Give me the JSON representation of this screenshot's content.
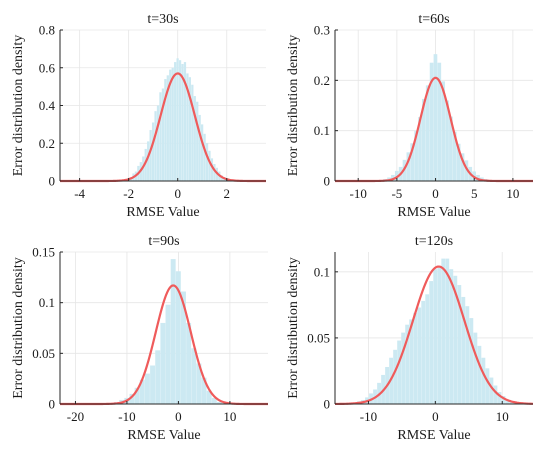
{
  "figure": {
    "colors": {
      "histogram": "#cce9f2",
      "fit_curve": "#ef5b5b",
      "axis": "#262626"
    }
  },
  "chart_data": [
    {
      "type": "bar",
      "title": "t=30s",
      "xlabel": "RMSE Value",
      "ylabel": "Error distribution density",
      "xlim": [
        -4.8,
        3.6
      ],
      "ylim": [
        0,
        0.8
      ],
      "xticks": [
        -4,
        -2,
        0,
        2
      ],
      "xtick_labels": [
        "-4",
        "-2",
        "0",
        "2"
      ],
      "yticks": [
        0,
        0.2,
        0.4,
        0.6,
        0.8
      ],
      "ytick_labels": [
        "0",
        "0.2",
        "0.4",
        "0.6",
        "0.8"
      ],
      "grid": true,
      "series": [
        {
          "kind": "histogram",
          "bin_width": 0.1,
          "bin_centers": [
            -2.2,
            -2.1,
            -2.0,
            -1.9,
            -1.8,
            -1.7,
            -1.6,
            -1.5,
            -1.4,
            -1.3,
            -1.2,
            -1.1,
            -1.0,
            -0.9,
            -0.8,
            -0.7,
            -0.6,
            -0.5,
            -0.4,
            -0.3,
            -0.2,
            -0.1,
            0.0,
            0.1,
            0.2,
            0.3,
            0.4,
            0.5,
            0.6,
            0.7,
            0.8,
            0.9,
            1.0,
            1.1,
            1.2,
            1.3,
            1.4,
            1.5,
            1.6,
            1.7,
            1.8,
            1.9,
            2.0,
            2.1,
            2.2
          ],
          "values": [
            0.0,
            0.01,
            0.01,
            0.02,
            0.04,
            0.05,
            0.08,
            0.1,
            0.13,
            0.17,
            0.21,
            0.27,
            0.31,
            0.37,
            0.4,
            0.47,
            0.49,
            0.54,
            0.56,
            0.59,
            0.6,
            0.63,
            0.65,
            0.64,
            0.62,
            0.63,
            0.57,
            0.55,
            0.51,
            0.45,
            0.42,
            0.35,
            0.3,
            0.25,
            0.2,
            0.16,
            0.12,
            0.09,
            0.07,
            0.05,
            0.03,
            0.02,
            0.01,
            0.01,
            0.0
          ]
        },
        {
          "kind": "normal-fit",
          "mean": 0.0,
          "std": 0.7,
          "peak": 0.57
        }
      ]
    },
    {
      "type": "bar",
      "title": "t=60s",
      "xlabel": "RMSE Value",
      "ylabel": "Error distribution density",
      "xlim": [
        -13,
        12.6
      ],
      "ylim": [
        0,
        0.3
      ],
      "xticks": [
        -10,
        -5,
        0,
        5,
        10
      ],
      "xtick_labels": [
        "-10",
        "-5",
        "0",
        "5",
        "10"
      ],
      "yticks": [
        0,
        0.1,
        0.2,
        0.3
      ],
      "ytick_labels": [
        "0",
        "0.1",
        "0.2",
        "0.3"
      ],
      "grid": true,
      "series": [
        {
          "kind": "histogram",
          "bin_width": 0.5,
          "bin_centers": [
            -7.5,
            -7.0,
            -6.5,
            -6.0,
            -5.5,
            -5.0,
            -4.5,
            -4.0,
            -3.5,
            -3.0,
            -2.5,
            -2.0,
            -1.5,
            -1.0,
            -0.5,
            0.0,
            0.5,
            1.0,
            1.5,
            2.0,
            2.5,
            3.0,
            3.5,
            4.0,
            4.5,
            5.0,
            5.5,
            6.0,
            6.5,
            7.0,
            7.5
          ],
          "values": [
            0.0,
            0.002,
            0.004,
            0.007,
            0.012,
            0.02,
            0.028,
            0.042,
            0.057,
            0.075,
            0.1,
            0.127,
            0.163,
            0.19,
            0.235,
            0.252,
            0.235,
            0.198,
            0.16,
            0.128,
            0.098,
            0.074,
            0.055,
            0.041,
            0.028,
            0.019,
            0.012,
            0.007,
            0.004,
            0.002,
            0.0
          ]
        },
        {
          "kind": "normal-fit",
          "mean": 0.0,
          "std": 1.95,
          "peak": 0.205
        }
      ]
    },
    {
      "type": "bar",
      "title": "t=90s",
      "xlabel": "RMSE Value",
      "ylabel": "Error distribution density",
      "xlim": [
        -23,
        17.4
      ],
      "ylim": [
        0,
        0.15
      ],
      "xticks": [
        -20,
        -10,
        0,
        10
      ],
      "xtick_labels": [
        "-20",
        "-10",
        "0",
        "10"
      ],
      "yticks": [
        0,
        0.05,
        0.1,
        0.15
      ],
      "ytick_labels": [
        "0",
        "0.05",
        "0.1",
        "0.15"
      ],
      "grid": true,
      "series": [
        {
          "kind": "histogram",
          "bin_width": 1,
          "bin_centers": [
            -12,
            -11,
            -10,
            -9,
            -8,
            -7,
            -6,
            -5,
            -4,
            -3,
            -2,
            -1,
            0,
            1,
            2,
            3,
            4,
            5,
            6,
            7,
            8,
            9,
            10
          ],
          "values": [
            0.002,
            0.004,
            0.006,
            0.01,
            0.016,
            0.024,
            0.03,
            0.038,
            0.053,
            0.08,
            0.098,
            0.143,
            0.131,
            0.111,
            0.08,
            0.055,
            0.04,
            0.026,
            0.013,
            0.006,
            0.002,
            0.001,
            0.0
          ]
        },
        {
          "kind": "normal-fit",
          "mean": -1.0,
          "std": 3.4,
          "peak": 0.117
        }
      ]
    },
    {
      "type": "bar",
      "title": "t=120s",
      "xlabel": "RMSE Value",
      "ylabel": "Error distribution density",
      "xlim": [
        -15,
        14.6
      ],
      "ylim": [
        0,
        0.115
      ],
      "xticks": [
        -10,
        0,
        10
      ],
      "xtick_labels": [
        "-10",
        "0",
        "10"
      ],
      "yticks": [
        0,
        0.05,
        0.1
      ],
      "ytick_labels": [
        "0",
        "0.05",
        "0.1"
      ],
      "grid": true,
      "series": [
        {
          "kind": "histogram",
          "bin_width": 0.6,
          "bin_centers": [
            -12.0,
            -11.4,
            -10.8,
            -10.2,
            -9.6,
            -9.0,
            -8.4,
            -7.8,
            -7.2,
            -6.6,
            -6.0,
            -5.4,
            -4.8,
            -4.2,
            -3.6,
            -3.0,
            -2.4,
            -1.8,
            -1.2,
            -0.6,
            0.0,
            0.6,
            1.2,
            1.8,
            2.4,
            3.0,
            3.6,
            4.2,
            4.8,
            5.4,
            6.0,
            6.6,
            7.2,
            7.8,
            8.4,
            9.0,
            9.6,
            10.2,
            10.8,
            11.4,
            12.0
          ],
          "values": [
            0.001,
            0.002,
            0.003,
            0.005,
            0.008,
            0.011,
            0.016,
            0.022,
            0.028,
            0.035,
            0.041,
            0.048,
            0.054,
            0.06,
            0.064,
            0.069,
            0.073,
            0.078,
            0.083,
            0.093,
            0.102,
            0.103,
            0.11,
            0.11,
            0.102,
            0.097,
            0.09,
            0.081,
            0.074,
            0.065,
            0.054,
            0.044,
            0.035,
            0.027,
            0.02,
            0.014,
            0.009,
            0.006,
            0.003,
            0.002,
            0.001
          ]
        },
        {
          "kind": "normal-fit",
          "mean": 0.5,
          "std": 3.85,
          "peak": 0.104
        }
      ]
    }
  ]
}
